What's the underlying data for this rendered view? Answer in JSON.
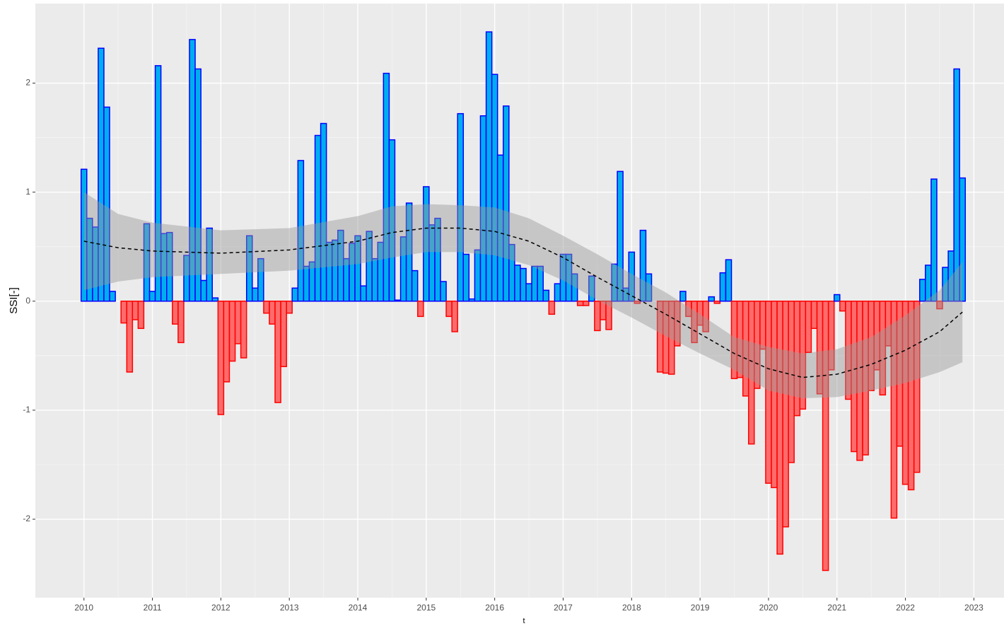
{
  "chart_data": {
    "type": "bar",
    "y_label": "SSI[-]",
    "x_label": "t",
    "xlim": [
      2009.29,
      2023.44
    ],
    "ylim": [
      -2.72,
      2.73
    ],
    "xticks": [
      2010,
      2011,
      2012,
      2013,
      2014,
      2015,
      2016,
      2017,
      2018,
      2019,
      2020,
      2021,
      2022,
      2023
    ],
    "yticks": [
      -2,
      -1,
      0,
      1,
      2
    ],
    "grid": true,
    "positive_fill": "#00aeef",
    "positive_stroke": "#0000ff",
    "negative_fill": "#ff6b6b",
    "negative_stroke": "#ff0000",
    "x": [
      2010,
      2010.083,
      2010.167,
      2010.25,
      2010.333,
      2010.417,
      2010.5,
      2010.583,
      2010.667,
      2010.75,
      2010.833,
      2010.917,
      2011,
      2011.083,
      2011.167,
      2011.25,
      2011.333,
      2011.417,
      2011.5,
      2011.583,
      2011.667,
      2011.75,
      2011.833,
      2011.917,
      2012,
      2012.083,
      2012.167,
      2012.25,
      2012.333,
      2012.417,
      2012.5,
      2012.583,
      2012.667,
      2012.75,
      2012.833,
      2012.917,
      2013,
      2013.083,
      2013.167,
      2013.25,
      2013.333,
      2013.417,
      2013.5,
      2013.583,
      2013.667,
      2013.75,
      2013.833,
      2013.917,
      2014,
      2014.083,
      2014.167,
      2014.25,
      2014.333,
      2014.417,
      2014.5,
      2014.583,
      2014.667,
      2014.75,
      2014.833,
      2014.917,
      2015,
      2015.083,
      2015.167,
      2015.25,
      2015.333,
      2015.417,
      2015.5,
      2015.583,
      2015.667,
      2015.75,
      2015.833,
      2015.917,
      2016,
      2016.083,
      2016.167,
      2016.25,
      2016.333,
      2016.417,
      2016.5,
      2016.583,
      2016.667,
      2016.75,
      2016.833,
      2016.917,
      2017,
      2017.083,
      2017.167,
      2017.25,
      2017.333,
      2017.417,
      2017.5,
      2017.583,
      2017.667,
      2017.75,
      2017.833,
      2017.917,
      2018,
      2018.083,
      2018.167,
      2018.25,
      2018.333,
      2018.417,
      2018.5,
      2018.583,
      2018.667,
      2018.75,
      2018.833,
      2018.917,
      2019,
      2019.083,
      2019.167,
      2019.25,
      2019.333,
      2019.417,
      2019.5,
      2019.583,
      2019.667,
      2019.75,
      2019.833,
      2019.917,
      2020,
      2020.083,
      2020.167,
      2020.25,
      2020.333,
      2020.417,
      2020.5,
      2020.583,
      2020.667,
      2020.75,
      2020.833,
      2020.917,
      2021,
      2021.083,
      2021.167,
      2021.25,
      2021.333,
      2021.417,
      2021.5,
      2021.583,
      2021.667,
      2021.75,
      2021.833,
      2021.917,
      2022,
      2022.083,
      2022.167,
      2022.25,
      2022.333,
      2022.417,
      2022.5,
      2022.583,
      2022.667,
      2022.75,
      2022.833
    ],
    "values": [
      1.21,
      0.76,
      0.68,
      2.32,
      1.78,
      0.09,
      0,
      -0.2,
      -0.65,
      -0.17,
      -0.25,
      0.71,
      0.09,
      2.16,
      0.62,
      0.63,
      -0.21,
      -0.38,
      0.42,
      2.4,
      2.13,
      0.19,
      0.67,
      0.03,
      -1.04,
      -0.74,
      -0.55,
      -0.39,
      -0.52,
      0.6,
      0.12,
      0.39,
      -0.11,
      -0.21,
      -0.93,
      -0.6,
      -0.11,
      0.12,
      1.29,
      0.32,
      0.36,
      1.52,
      1.63,
      0.54,
      0.56,
      0.65,
      0.39,
      0.53,
      0.6,
      0.14,
      0.64,
      0.39,
      0.54,
      2.09,
      1.48,
      0.01,
      0.59,
      0.9,
      0.28,
      -0.14,
      1.05,
      0.7,
      0.76,
      0.18,
      -0.14,
      -0.28,
      1.72,
      0.43,
      0.02,
      0.47,
      1.7,
      2.47,
      2.08,
      1.34,
      1.79,
      0.52,
      0.33,
      0.3,
      0.16,
      0.32,
      0.32,
      0.1,
      -0.12,
      0.16,
      0.43,
      0.43,
      0.25,
      -0.04,
      -0.04,
      0.23,
      -0.27,
      -0.17,
      -0.26,
      0.34,
      1.19,
      0.12,
      0.45,
      -0.02,
      0.65,
      0.25,
      0,
      -0.65,
      -0.66,
      -0.67,
      -0.41,
      0.09,
      -0.14,
      -0.38,
      -0.22,
      -0.28,
      0.04,
      -0.02,
      0.26,
      0.38,
      -0.71,
      -0.7,
      -0.87,
      -1.31,
      -0.8,
      -0.44,
      -1.67,
      -1.71,
      -2.32,
      -2.07,
      -1.48,
      -1.05,
      -0.99,
      -0.47,
      -0.25,
      -0.85,
      -2.47,
      -0.63,
      0.06,
      -0.09,
      -0.9,
      -1.38,
      -1.46,
      -1.41,
      -0.82,
      -0.63,
      -0.86,
      -0.41,
      -1.99,
      -1.33,
      -1.68,
      -1.73,
      -1.57,
      0.2,
      0.33,
      1.12,
      -0.07,
      0.31,
      0.46,
      2.13,
      1.13
    ],
    "trend": {
      "color": "#000000",
      "band_color": "#999999",
      "x": [
        2010,
        2010.5,
        2011,
        2012,
        2013,
        2014,
        2014.5,
        2015,
        2015.5,
        2016,
        2016.5,
        2017,
        2017.5,
        2018,
        2018.5,
        2019,
        2019.5,
        2020,
        2020.5,
        2021,
        2021.5,
        2022,
        2022.5,
        2022.833
      ],
      "values": [
        0.55,
        0.49,
        0.46,
        0.44,
        0.47,
        0.55,
        0.63,
        0.67,
        0.67,
        0.64,
        0.55,
        0.4,
        0.22,
        0.05,
        -0.12,
        -0.3,
        -0.48,
        -0.62,
        -0.7,
        -0.67,
        -0.58,
        -0.45,
        -0.28,
        -0.1
      ],
      "upper": [
        1.0,
        0.8,
        0.72,
        0.65,
        0.67,
        0.78,
        0.87,
        0.89,
        0.88,
        0.86,
        0.76,
        0.6,
        0.43,
        0.25,
        0.08,
        -0.12,
        -0.33,
        -0.42,
        -0.48,
        -0.44,
        -0.33,
        -0.13,
        0.1,
        0.36
      ],
      "lower": [
        0.1,
        0.18,
        0.22,
        0.25,
        0.28,
        0.34,
        0.4,
        0.45,
        0.45,
        0.42,
        0.33,
        0.19,
        0.01,
        -0.15,
        -0.32,
        -0.48,
        -0.63,
        -0.82,
        -0.89,
        -0.88,
        -0.82,
        -0.75,
        -0.65,
        -0.56
      ]
    }
  }
}
